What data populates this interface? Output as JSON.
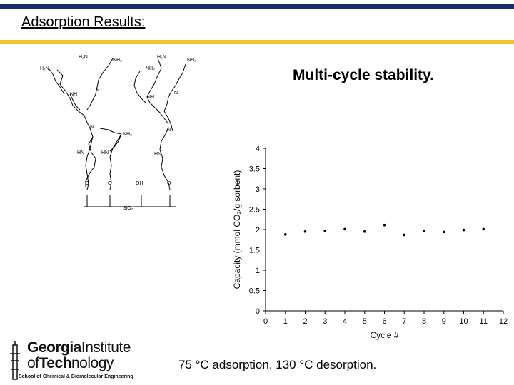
{
  "slide": {
    "heading": "Adsorption Results:",
    "subtitle": "Multi-cycle stability.",
    "caption": "75 °C adsorption, 130 °C desorption.",
    "colors": {
      "top_bar": "#1a2a6c",
      "accent_bar": "#f2c230"
    }
  },
  "molecule": {
    "labels": [
      "H₂N",
      "NH₂",
      "H₂N",
      "NH₂",
      "H₂N",
      "NH₂",
      "N",
      "NH",
      "N",
      "NH",
      "N",
      "N",
      "NH₂",
      "HN",
      "HN",
      "HN",
      "O",
      "O",
      "OH",
      "O",
      "SiO₂"
    ]
  },
  "logo": {
    "line1_bold": "Georgia",
    "line1_light": "Institute",
    "line2_bold": "of",
    "line2_mid": "Tech",
    "line2_light": "nology",
    "school": "School of Chemical & Biomolecular Engineering"
  },
  "chart_data": {
    "type": "scatter",
    "xlabel": "Cycle #",
    "ylabel": "Capacity (mmol CO₂/g sorbent)",
    "xlim": [
      0,
      12
    ],
    "ylim": [
      0,
      4
    ],
    "xticks": [
      "0",
      "1",
      "2",
      "3",
      "4",
      "5",
      "6",
      "7",
      "8",
      "9",
      "10",
      "11",
      "12"
    ],
    "yticks": [
      "0",
      "0.5",
      "1",
      "1.5",
      "2",
      "2.5",
      "3",
      "3.5",
      "4"
    ],
    "grid": false,
    "x": [
      1,
      2,
      3,
      4,
      5,
      6,
      7,
      8,
      9,
      10,
      11
    ],
    "y": [
      1.88,
      1.95,
      1.97,
      2.01,
      1.95,
      2.11,
      1.87,
      1.96,
      1.94,
      1.99,
      2.01
    ]
  }
}
